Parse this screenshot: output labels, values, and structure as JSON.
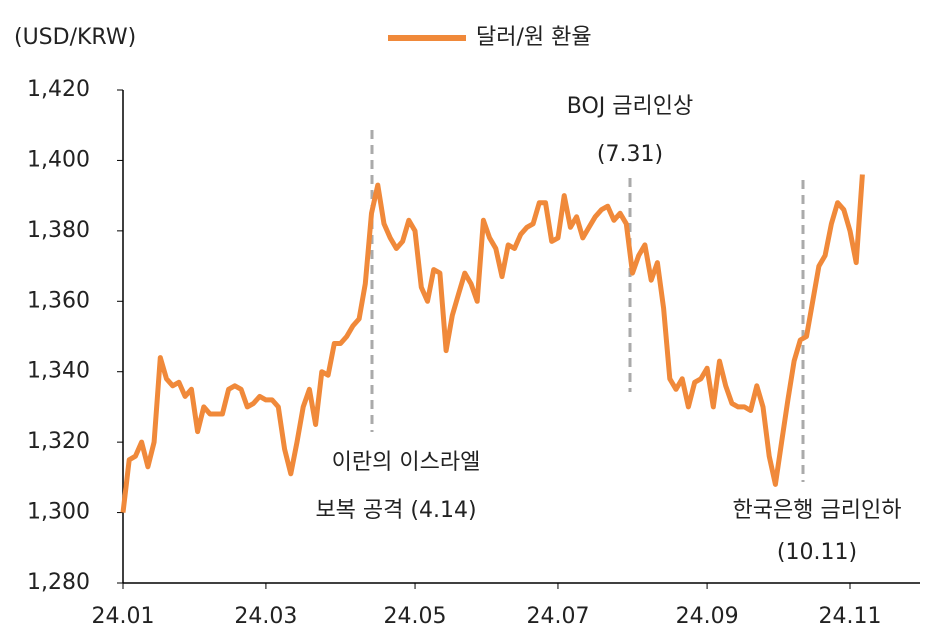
{
  "chart_data": {
    "type": "line",
    "y_label": "(USD/KRW)",
    "categories": [
      "24.01",
      null,
      null,
      null,
      null,
      null,
      null,
      null,
      null,
      null,
      null,
      null,
      null,
      null,
      null,
      null,
      null,
      null,
      null,
      null,
      null,
      null,
      null,
      "24.03",
      null,
      null,
      null,
      null,
      null,
      null,
      null,
      null,
      null,
      null,
      null,
      null,
      null,
      null,
      null,
      null,
      null,
      null,
      null,
      null,
      null,
      null,
      null,
      "24.05",
      null,
      null,
      null,
      null,
      null,
      null,
      null,
      null,
      null,
      null,
      null,
      null,
      null,
      null,
      null,
      null,
      null,
      null,
      null,
      null,
      null,
      null,
      "24.07",
      null,
      null,
      null,
      null,
      null,
      null,
      null,
      null,
      null,
      null,
      null,
      null,
      null,
      null,
      null,
      null,
      null,
      null,
      null,
      null,
      null,
      null,
      null,
      "24.09",
      null,
      null,
      null,
      null,
      null,
      null,
      null,
      null,
      null,
      null,
      null,
      null,
      null,
      null,
      null,
      null,
      null,
      null,
      null,
      null,
      null,
      null,
      "24.11",
      null,
      null
    ],
    "series": [
      {
        "name": "달러/원 환율",
        "color": "#f0893a",
        "values": [
          1300,
          1315,
          1316,
          1320,
          1313,
          1320,
          1344,
          1338,
          1336,
          1337,
          1333,
          1335,
          1323,
          1330,
          1328,
          1328,
          1328,
          1335,
          1336,
          1335,
          1330,
          1331,
          1333,
          1332,
          1332,
          1330,
          1318,
          1311,
          1320,
          1330,
          1335,
          1325,
          1340,
          1339,
          1348,
          1348,
          1350,
          1353,
          1355,
          1365,
          1385,
          1393,
          1382,
          1378,
          1375,
          1377,
          1383,
          1380,
          1364,
          1360,
          1369,
          1368,
          1346,
          1356,
          1362,
          1368,
          1365,
          1360,
          1383,
          1378,
          1375,
          1367,
          1376,
          1375,
          1379,
          1381,
          1382,
          1388,
          1388,
          1377,
          1378,
          1390,
          1381,
          1384,
          1378,
          1381,
          1384,
          1386,
          1387,
          1383,
          1385,
          1382,
          1368,
          1373,
          1376,
          1366,
          1371,
          1358,
          1338,
          1335,
          1338,
          1330,
          1337,
          1338,
          1341,
          1330,
          1343,
          1336,
          1331,
          1330,
          1330,
          1329,
          1336,
          1330,
          1316,
          1308,
          1320,
          1332,
          1343,
          1349,
          1350,
          1360,
          1370,
          1373,
          1382,
          1388,
          1386,
          1380,
          1371,
          1396
        ]
      }
    ],
    "ylim": [
      1280,
      1420
    ],
    "yticks": [
      {
        "value": 1280,
        "label": "1,280"
      },
      {
        "value": 1300,
        "label": "1,300"
      },
      {
        "value": 1320,
        "label": "1,320"
      },
      {
        "value": 1340,
        "label": "1,340"
      },
      {
        "value": 1360,
        "label": "1,360"
      },
      {
        "value": 1380,
        "label": "1,380"
      },
      {
        "value": 1400,
        "label": "1,400"
      },
      {
        "value": 1420,
        "label": "1,420"
      }
    ],
    "grid": false,
    "annotations": [
      "이란의 이스라엘",
      "보복 공격 (4.14)",
      "BOJ 금리인상",
      "(7.31)",
      "한국은행 금리인하",
      "(10.11)"
    ]
  }
}
